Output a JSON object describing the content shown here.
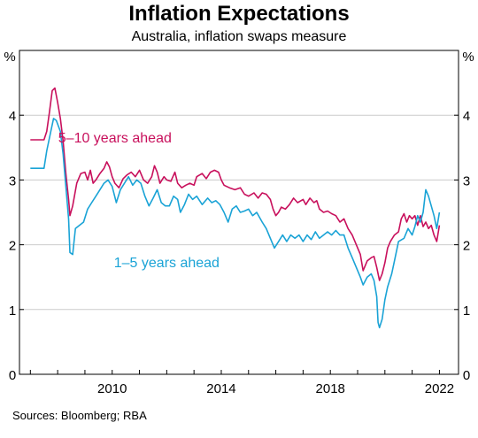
{
  "header": {
    "title": "Inflation Expectations",
    "subtitle": "Australia, inflation swaps measure"
  },
  "footer": {
    "source": "Sources: Bloomberg; RBA"
  },
  "colors": {
    "series_5_10": "#c8105c",
    "series_1_5": "#1aa3d6",
    "grid": "#cccccc",
    "axis": "#000000"
  },
  "chart_data": {
    "type": "line",
    "title": "Inflation Expectations",
    "subtitle": "Australia, inflation swaps measure",
    "xlabel": "",
    "ylabel_left": "%",
    "ylabel_right": "%",
    "xlim": [
      2006.6,
      2022.7
    ],
    "ylim": [
      0,
      5
    ],
    "x_ticks": [
      2010,
      2014,
      2018,
      2022
    ],
    "y_ticks": [
      0,
      1,
      2,
      3,
      4
    ],
    "y_tick_labels": [
      "0",
      "1",
      "2",
      "3",
      "4"
    ],
    "x_tick_labels": [
      "2010",
      "2014",
      "2018",
      "2022"
    ],
    "grid": true,
    "series": [
      {
        "name": "5–10 years ahead",
        "color": "#c8105c",
        "points": [
          [
            2007.0,
            3.62
          ],
          [
            2007.3,
            3.62
          ],
          [
            2007.5,
            3.62
          ],
          [
            2007.6,
            3.75
          ],
          [
            2007.7,
            4.05
          ],
          [
            2007.8,
            4.38
          ],
          [
            2007.9,
            4.42
          ],
          [
            2008.0,
            4.2
          ],
          [
            2008.1,
            3.95
          ],
          [
            2008.2,
            3.6
          ],
          [
            2008.3,
            3.1
          ],
          [
            2008.4,
            2.7
          ],
          [
            2008.45,
            2.45
          ],
          [
            2008.55,
            2.6
          ],
          [
            2008.7,
            2.95
          ],
          [
            2008.85,
            3.1
          ],
          [
            2009.0,
            3.12
          ],
          [
            2009.1,
            3.0
          ],
          [
            2009.2,
            3.15
          ],
          [
            2009.3,
            2.95
          ],
          [
            2009.4,
            3.0
          ],
          [
            2009.55,
            3.1
          ],
          [
            2009.7,
            3.18
          ],
          [
            2009.8,
            3.28
          ],
          [
            2009.9,
            3.2
          ],
          [
            2010.0,
            3.05
          ],
          [
            2010.1,
            2.95
          ],
          [
            2010.25,
            2.88
          ],
          [
            2010.4,
            3.02
          ],
          [
            2010.55,
            3.08
          ],
          [
            2010.7,
            3.12
          ],
          [
            2010.85,
            3.05
          ],
          [
            2011.0,
            3.15
          ],
          [
            2011.15,
            3.0
          ],
          [
            2011.3,
            2.95
          ],
          [
            2011.45,
            3.05
          ],
          [
            2011.55,
            3.22
          ],
          [
            2011.65,
            3.12
          ],
          [
            2011.75,
            2.95
          ],
          [
            2011.9,
            3.05
          ],
          [
            2012.0,
            3.0
          ],
          [
            2012.15,
            2.98
          ],
          [
            2012.3,
            3.12
          ],
          [
            2012.4,
            2.95
          ],
          [
            2012.55,
            2.88
          ],
          [
            2012.7,
            2.92
          ],
          [
            2012.85,
            2.95
          ],
          [
            2013.0,
            2.92
          ],
          [
            2013.1,
            3.05
          ],
          [
            2013.3,
            3.1
          ],
          [
            2013.45,
            3.02
          ],
          [
            2013.6,
            3.12
          ],
          [
            2013.75,
            3.15
          ],
          [
            2013.9,
            3.12
          ],
          [
            2014.0,
            3.0
          ],
          [
            2014.1,
            2.92
          ],
          [
            2014.3,
            2.88
          ],
          [
            2014.5,
            2.85
          ],
          [
            2014.7,
            2.88
          ],
          [
            2014.85,
            2.78
          ],
          [
            2015.0,
            2.75
          ],
          [
            2015.2,
            2.8
          ],
          [
            2015.35,
            2.72
          ],
          [
            2015.5,
            2.8
          ],
          [
            2015.65,
            2.78
          ],
          [
            2015.8,
            2.7
          ],
          [
            2015.9,
            2.55
          ],
          [
            2016.0,
            2.45
          ],
          [
            2016.1,
            2.5
          ],
          [
            2016.2,
            2.58
          ],
          [
            2016.35,
            2.55
          ],
          [
            2016.5,
            2.62
          ],
          [
            2016.65,
            2.72
          ],
          [
            2016.8,
            2.65
          ],
          [
            2017.0,
            2.7
          ],
          [
            2017.1,
            2.62
          ],
          [
            2017.25,
            2.72
          ],
          [
            2017.4,
            2.65
          ],
          [
            2017.5,
            2.68
          ],
          [
            2017.6,
            2.55
          ],
          [
            2017.75,
            2.5
          ],
          [
            2017.9,
            2.52
          ],
          [
            2018.05,
            2.48
          ],
          [
            2018.2,
            2.45
          ],
          [
            2018.35,
            2.35
          ],
          [
            2018.5,
            2.4
          ],
          [
            2018.65,
            2.25
          ],
          [
            2018.8,
            2.15
          ],
          [
            2018.95,
            2.0
          ],
          [
            2019.1,
            1.85
          ],
          [
            2019.2,
            1.6
          ],
          [
            2019.35,
            1.75
          ],
          [
            2019.5,
            1.8
          ],
          [
            2019.6,
            1.82
          ],
          [
            2019.7,
            1.65
          ],
          [
            2019.8,
            1.45
          ],
          [
            2019.9,
            1.55
          ],
          [
            2020.0,
            1.72
          ],
          [
            2020.1,
            1.95
          ],
          [
            2020.2,
            2.05
          ],
          [
            2020.35,
            2.15
          ],
          [
            2020.5,
            2.2
          ],
          [
            2020.6,
            2.4
          ],
          [
            2020.7,
            2.48
          ],
          [
            2020.8,
            2.35
          ],
          [
            2020.9,
            2.45
          ],
          [
            2021.0,
            2.4
          ],
          [
            2021.1,
            2.45
          ],
          [
            2021.2,
            2.3
          ],
          [
            2021.3,
            2.45
          ],
          [
            2021.4,
            2.28
          ],
          [
            2021.5,
            2.35
          ],
          [
            2021.6,
            2.25
          ],
          [
            2021.7,
            2.3
          ],
          [
            2021.8,
            2.15
          ],
          [
            2021.9,
            2.05
          ],
          [
            2022.0,
            2.3
          ]
        ]
      },
      {
        "name": "1–5 years ahead",
        "color": "#1aa3d6",
        "points": [
          [
            2007.0,
            3.18
          ],
          [
            2007.3,
            3.18
          ],
          [
            2007.5,
            3.18
          ],
          [
            2007.6,
            3.45
          ],
          [
            2007.75,
            3.75
          ],
          [
            2007.85,
            3.95
          ],
          [
            2007.95,
            3.92
          ],
          [
            2008.1,
            3.75
          ],
          [
            2008.2,
            3.4
          ],
          [
            2008.3,
            2.9
          ],
          [
            2008.4,
            2.4
          ],
          [
            2008.45,
            1.88
          ],
          [
            2008.55,
            1.85
          ],
          [
            2008.65,
            2.25
          ],
          [
            2008.8,
            2.3
          ],
          [
            2008.95,
            2.35
          ],
          [
            2009.1,
            2.55
          ],
          [
            2009.25,
            2.65
          ],
          [
            2009.4,
            2.75
          ],
          [
            2009.55,
            2.85
          ],
          [
            2009.7,
            2.95
          ],
          [
            2009.85,
            3.0
          ],
          [
            2010.0,
            2.9
          ],
          [
            2010.15,
            2.65
          ],
          [
            2010.3,
            2.85
          ],
          [
            2010.45,
            2.95
          ],
          [
            2010.6,
            3.05
          ],
          [
            2010.75,
            2.92
          ],
          [
            2010.9,
            3.0
          ],
          [
            2011.05,
            2.95
          ],
          [
            2011.2,
            2.75
          ],
          [
            2011.35,
            2.6
          ],
          [
            2011.5,
            2.72
          ],
          [
            2011.65,
            2.85
          ],
          [
            2011.8,
            2.65
          ],
          [
            2011.95,
            2.6
          ],
          [
            2012.1,
            2.6
          ],
          [
            2012.25,
            2.75
          ],
          [
            2012.4,
            2.7
          ],
          [
            2012.5,
            2.5
          ],
          [
            2012.65,
            2.62
          ],
          [
            2012.8,
            2.78
          ],
          [
            2012.95,
            2.7
          ],
          [
            2013.1,
            2.75
          ],
          [
            2013.3,
            2.62
          ],
          [
            2013.5,
            2.72
          ],
          [
            2013.65,
            2.65
          ],
          [
            2013.8,
            2.68
          ],
          [
            2013.95,
            2.62
          ],
          [
            2014.1,
            2.5
          ],
          [
            2014.25,
            2.35
          ],
          [
            2014.4,
            2.55
          ],
          [
            2014.55,
            2.6
          ],
          [
            2014.7,
            2.5
          ],
          [
            2014.85,
            2.52
          ],
          [
            2015.0,
            2.55
          ],
          [
            2015.15,
            2.45
          ],
          [
            2015.3,
            2.5
          ],
          [
            2015.5,
            2.35
          ],
          [
            2015.65,
            2.25
          ],
          [
            2015.8,
            2.1
          ],
          [
            2015.95,
            1.95
          ],
          [
            2016.1,
            2.05
          ],
          [
            2016.25,
            2.15
          ],
          [
            2016.4,
            2.05
          ],
          [
            2016.55,
            2.15
          ],
          [
            2016.7,
            2.1
          ],
          [
            2016.85,
            2.15
          ],
          [
            2017.0,
            2.05
          ],
          [
            2017.15,
            2.15
          ],
          [
            2017.3,
            2.08
          ],
          [
            2017.45,
            2.2
          ],
          [
            2017.6,
            2.1
          ],
          [
            2017.75,
            2.15
          ],
          [
            2017.9,
            2.2
          ],
          [
            2018.05,
            2.15
          ],
          [
            2018.2,
            2.22
          ],
          [
            2018.35,
            2.15
          ],
          [
            2018.5,
            2.15
          ],
          [
            2018.65,
            1.95
          ],
          [
            2018.8,
            1.8
          ],
          [
            2018.95,
            1.65
          ],
          [
            2019.1,
            1.5
          ],
          [
            2019.2,
            1.38
          ],
          [
            2019.35,
            1.5
          ],
          [
            2019.5,
            1.55
          ],
          [
            2019.6,
            1.45
          ],
          [
            2019.7,
            1.2
          ],
          [
            2019.75,
            0.8
          ],
          [
            2019.8,
            0.72
          ],
          [
            2019.9,
            0.85
          ],
          [
            2020.0,
            1.15
          ],
          [
            2020.1,
            1.35
          ],
          [
            2020.25,
            1.55
          ],
          [
            2020.35,
            1.75
          ],
          [
            2020.5,
            2.05
          ],
          [
            2020.7,
            2.1
          ],
          [
            2020.85,
            2.25
          ],
          [
            2021.0,
            2.15
          ],
          [
            2021.1,
            2.28
          ],
          [
            2021.2,
            2.45
          ],
          [
            2021.3,
            2.35
          ],
          [
            2021.4,
            2.5
          ],
          [
            2021.5,
            2.85
          ],
          [
            2021.6,
            2.75
          ],
          [
            2021.7,
            2.6
          ],
          [
            2021.8,
            2.45
          ],
          [
            2021.9,
            2.25
          ],
          [
            2022.0,
            2.5
          ]
        ]
      }
    ],
    "annotations": [
      {
        "text": "5–10 years ahead",
        "series": 0,
        "at_x": 2010.1,
        "at_y": 3.58
      },
      {
        "text": "1–5 years ahead",
        "series": 1,
        "at_x": 2012.0,
        "at_y": 1.65
      }
    ]
  }
}
